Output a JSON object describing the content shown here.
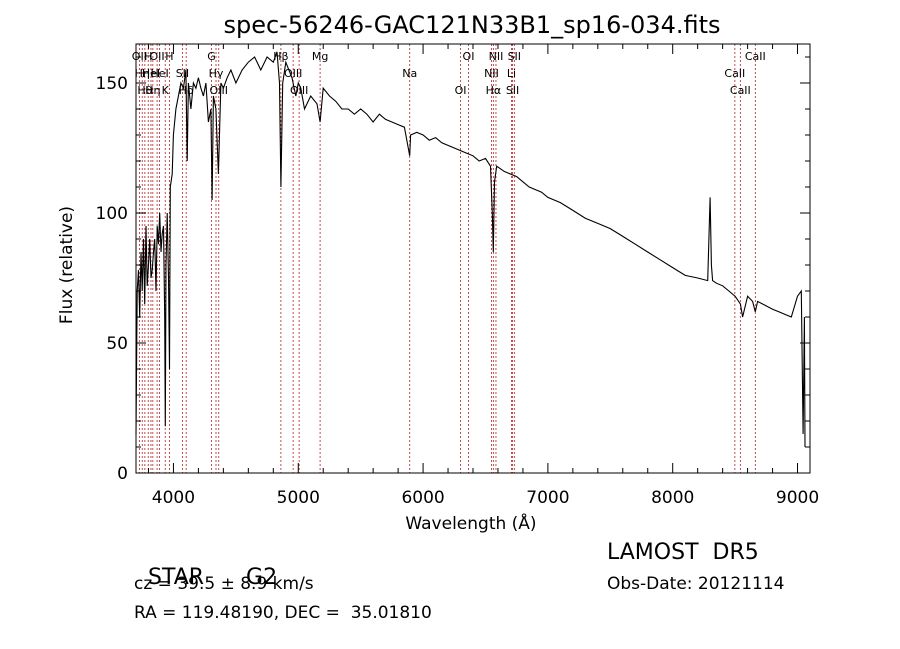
{
  "chart_data": {
    "type": "line",
    "title": "spec-56246-GAC121N33B1_sp16-034.fits",
    "xlabel": "Wavelength (Å)",
    "ylabel": "Flux (relative)",
    "xlim": [
      3700,
      9100
    ],
    "ylim": [
      0,
      165
    ],
    "xticks": [
      4000,
      5000,
      6000,
      7000,
      8000,
      9000
    ],
    "yticks": [
      0,
      50,
      100,
      150
    ],
    "grid": false,
    "series_color": "#000000",
    "line_marker_color": "#b22222",
    "line_markers": [
      {
        "x": 3727,
        "label": "OII"
      },
      {
        "x": 3750,
        "label": "Hη"
      },
      {
        "x": 3771,
        "label": "Hθ"
      },
      {
        "x": 3798,
        "label": "H"
      },
      {
        "x": 3820,
        "label": "HeI"
      },
      {
        "x": 3835,
        "label": "Hη"
      },
      {
        "x": 3869,
        "label": "OII"
      },
      {
        "x": 3889,
        "label": "HeI"
      },
      {
        "x": 3934,
        "label": "K"
      },
      {
        "x": 3968,
        "label": "H"
      },
      {
        "x": 4072,
        "label": "SII"
      },
      {
        "x": 4102,
        "label": "Hδ"
      },
      {
        "x": 4305,
        "label": "G"
      },
      {
        "x": 4341,
        "label": "Hγ"
      },
      {
        "x": 4363,
        "label": "OIII"
      },
      {
        "x": 4861,
        "label": "Hβ"
      },
      {
        "x": 4959,
        "label": "OIII"
      },
      {
        "x": 5007,
        "label": "OIII"
      },
      {
        "x": 5175,
        "label": "Mg"
      },
      {
        "x": 5893,
        "label": "Na"
      },
      {
        "x": 6300,
        "label": "OI"
      },
      {
        "x": 6364,
        "label": "OI"
      },
      {
        "x": 6548,
        "label": "NII"
      },
      {
        "x": 6563,
        "label": "Hα"
      },
      {
        "x": 6584,
        "label": "NII"
      },
      {
        "x": 6708,
        "label": "Li"
      },
      {
        "x": 6717,
        "label": "SII"
      },
      {
        "x": 6731,
        "label": "SII"
      },
      {
        "x": 8498,
        "label": "CaII"
      },
      {
        "x": 8542,
        "label": "CaII"
      },
      {
        "x": 8662,
        "label": "CaII"
      }
    ],
    "series": [
      {
        "x": [
          3700,
          3710,
          3720,
          3730,
          3740,
          3750,
          3760,
          3770,
          3780,
          3790,
          3800,
          3810,
          3820,
          3830,
          3840,
          3850,
          3860,
          3870,
          3880,
          3890,
          3900,
          3910,
          3920,
          3930,
          3935,
          3940,
          3950,
          3960,
          3968,
          3975,
          3990,
          4000,
          4020,
          4040,
          4060,
          4080,
          4100,
          4110,
          4120,
          4140,
          4160,
          4180,
          4200,
          4220,
          4240,
          4260,
          4280,
          4300,
          4310,
          4320,
          4340,
          4360,
          4380,
          4400,
          4430,
          4460,
          4500,
          4550,
          4600,
          4650,
          4700,
          4750,
          4800,
          4830,
          4850,
          4861,
          4875,
          4900,
          4950,
          4980,
          5000,
          5020,
          5050,
          5100,
          5150,
          5175,
          5200,
          5250,
          5300,
          5350,
          5400,
          5450,
          5500,
          5550,
          5600,
          5650,
          5700,
          5750,
          5800,
          5850,
          5893,
          5900,
          5950,
          6000,
          6050,
          6100,
          6150,
          6200,
          6250,
          6300,
          6350,
          6400,
          6450,
          6500,
          6540,
          6555,
          6563,
          6572,
          6590,
          6620,
          6650,
          6700,
          6750,
          6800,
          6850,
          6900,
          6950,
          7000,
          7100,
          7200,
          7300,
          7400,
          7500,
          7600,
          7700,
          7800,
          7900,
          8000,
          8100,
          8200,
          8280,
          8300,
          8310,
          8320,
          8350,
          8400,
          8450,
          8500,
          8542,
          8560,
          8600,
          8640,
          8662,
          8680,
          8720,
          8760,
          8800,
          8850,
          8900,
          8950,
          9000,
          9030,
          9045,
          9055,
          9060
        ],
        "values": [
          15,
          70,
          78,
          60,
          85,
          70,
          90,
          65,
          95,
          72,
          80,
          90,
          75,
          78,
          85,
          90,
          70,
          95,
          88,
          100,
          85,
          92,
          95,
          60,
          18,
          80,
          100,
          75,
          40,
          110,
          115,
          130,
          140,
          145,
          150,
          148,
          155,
          120,
          150,
          140,
          150,
          148,
          152,
          148,
          145,
          150,
          135,
          140,
          105,
          145,
          140,
          115,
          150,
          148,
          152,
          155,
          150,
          155,
          158,
          160,
          155,
          160,
          158,
          162,
          150,
          110,
          150,
          158,
          152,
          145,
          150,
          148,
          140,
          145,
          142,
          135,
          148,
          145,
          143,
          140,
          140,
          138,
          140,
          138,
          135,
          138,
          136,
          135,
          134,
          133,
          122,
          130,
          131,
          130,
          128,
          129,
          127,
          126,
          125,
          124,
          123,
          122,
          120,
          121,
          118,
          100,
          85,
          112,
          118,
          117,
          116,
          115,
          114,
          112,
          110,
          109,
          108,
          106,
          104,
          101,
          98,
          96,
          94,
          91,
          88,
          85,
          82,
          79,
          76,
          75,
          74,
          106,
          80,
          74,
          73,
          72,
          70,
          68,
          65,
          60,
          68,
          66,
          62,
          66,
          65,
          64,
          63,
          62,
          61,
          60,
          68,
          70,
          15,
          60,
          10
        ]
      }
    ],
    "info_left": {
      "class_label": "STAR",
      "subclass_label": "G2",
      "cz_text": "cz = 39.5 ± 8.9 km/s",
      "coords_text": "RA = 119.48190, DEC =  35.01810"
    },
    "info_right": {
      "survey": "LAMOST  DR5",
      "obs_date": "Obs-Date: 20121114"
    }
  }
}
